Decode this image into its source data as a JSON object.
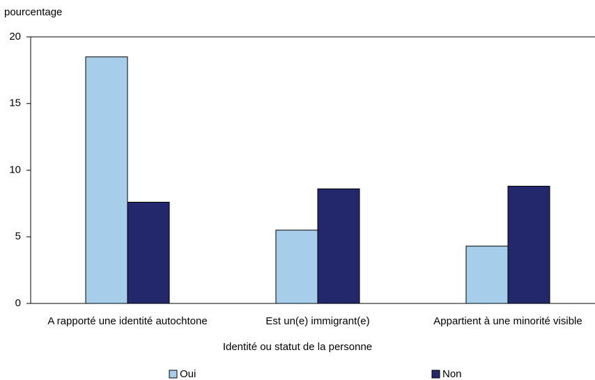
{
  "chart_data": {
    "type": "bar",
    "y_label": "pourcentage",
    "x_label": "Identité ou statut de la personne",
    "categories": [
      "A rapporté une identité autochtone",
      "Est un(e) immigrant(e)",
      "Appartient à une minorité visible"
    ],
    "series": [
      {
        "name": "Oui",
        "color": "#a6cdea",
        "values": [
          18.5,
          5.5,
          4.3
        ]
      },
      {
        "name": "Non",
        "color": "#22286b",
        "values": [
          7.6,
          8.6,
          8.8
        ]
      }
    ],
    "ylim": [
      0,
      20
    ],
    "yticks": [
      0,
      5,
      10,
      15,
      20
    ],
    "grid": false
  }
}
